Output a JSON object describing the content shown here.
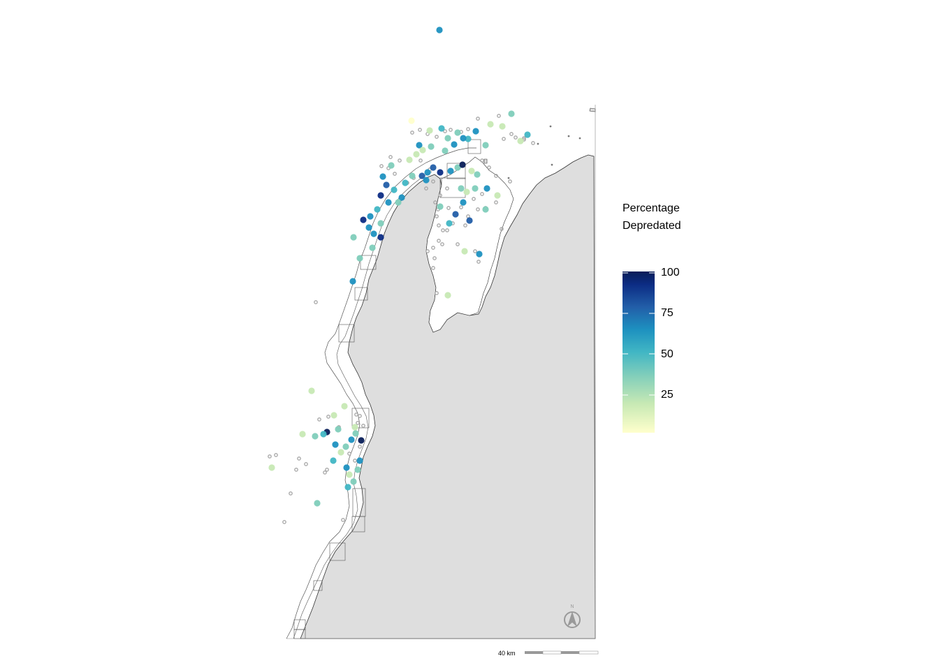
{
  "legend": {
    "title_line1": "Percentage",
    "title_line2": "Depredated",
    "ticks": [
      "100",
      "75",
      "50",
      "25"
    ],
    "gradient_colors": [
      "#ffffcc",
      "#c7e9b4",
      "#7fcdbb",
      "#41b6c4",
      "#1d91c0",
      "#225ea8",
      "#0c2c84",
      "#081d58"
    ]
  },
  "scale_bar": {
    "label": "40 km"
  },
  "north_arrow": {
    "label": "N",
    "icon": "north-arrow-icon"
  },
  "colors": {
    "land": "#dedede",
    "coastline": "#333333",
    "zero_marker": "#a6a6a6",
    "boundary": "#555555"
  }
}
